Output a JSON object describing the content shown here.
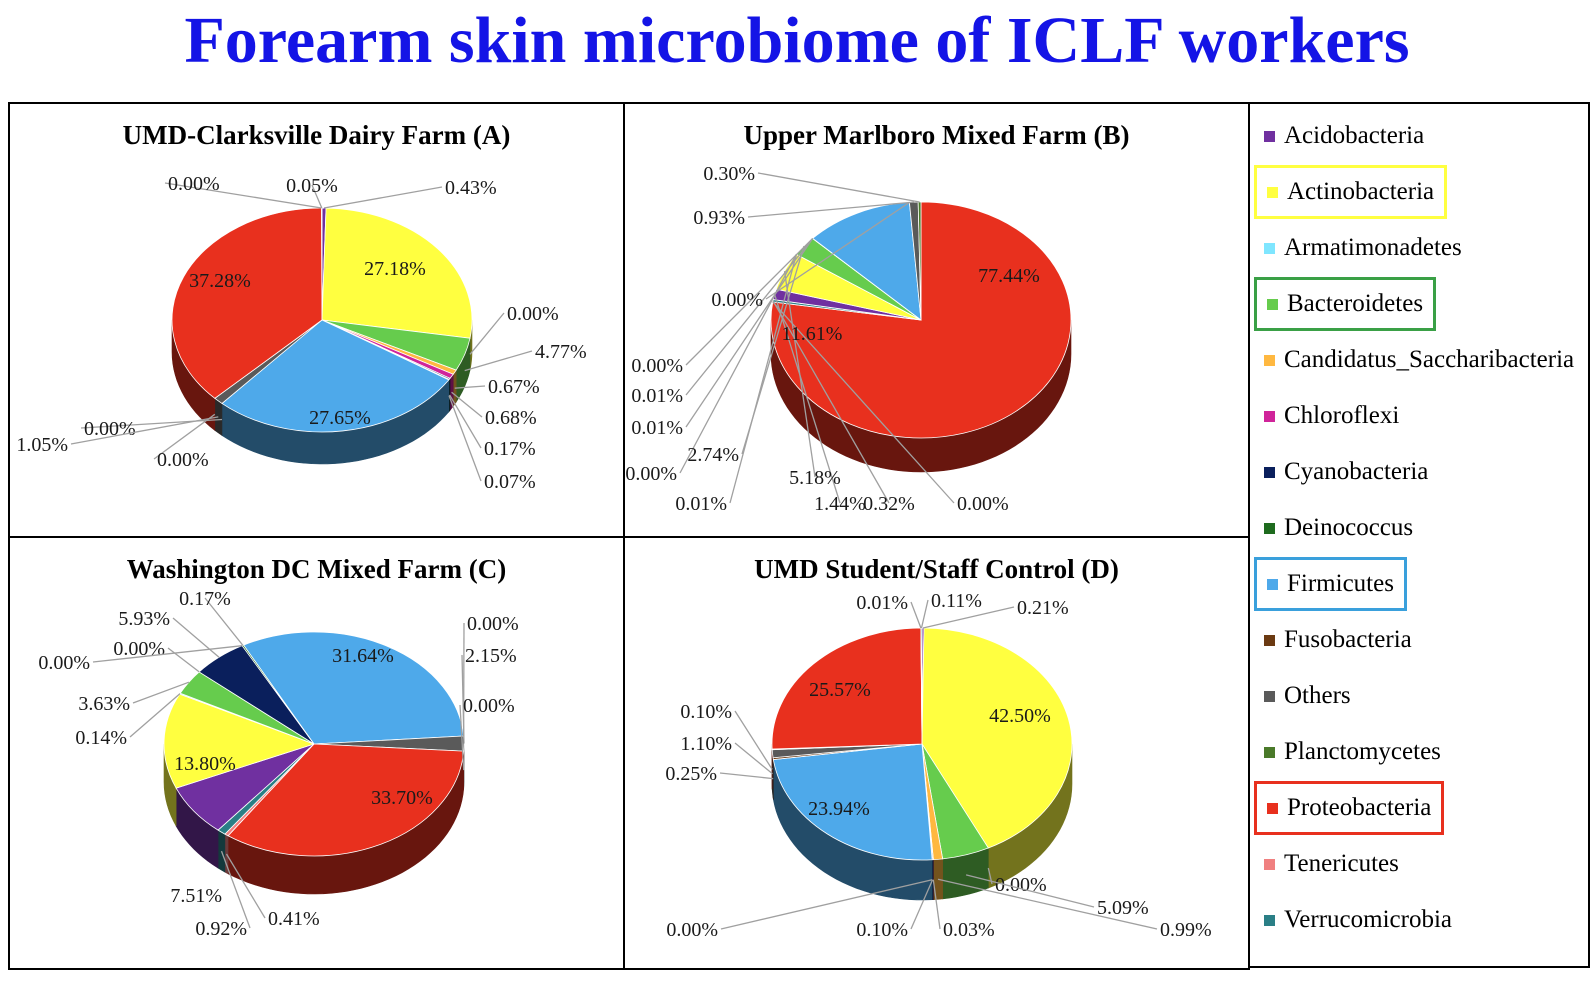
{
  "title": "Forearm skin microbiome of ICLF workers",
  "chart_data": {
    "type": "pie",
    "categories": [
      "Acidobacteria",
      "Actinobacteria",
      "Armatimonadetes",
      "Bacteroidetes",
      "Candidatus_Saccharibacteria",
      "Chloroflexi",
      "Cyanobacteria",
      "Deinococcus",
      "Firmicutes",
      "Fusobacteria",
      "Others",
      "Planctomycetes",
      "Proteobacteria",
      "Tenericutes",
      "Verrucomicrobia"
    ],
    "colors": {
      "Acidobacteria": "#7030a0",
      "Actinobacteria": "#ffff40",
      "Armatimonadetes": "#7fe6ff",
      "Bacteroidetes": "#66cc4d",
      "Candidatus_Saccharibacteria": "#ffb840",
      "Chloroflexi": "#d0249a",
      "Cyanobacteria": "#0a1f5c",
      "Deinococcus": "#1e6b1e",
      "Firmicutes": "#4ea9ea",
      "Fusobacteria": "#6b3a12",
      "Others": "#5a5a5a",
      "Planctomycetes": "#4a7a2a",
      "Proteobacteria": "#e8301e",
      "Tenericutes": "#f08080",
      "Verrucomicrobia": "#2a7f86"
    },
    "highlighted": {
      "Actinobacteria": "#ffff40",
      "Bacteroidetes": "#3aa046",
      "Firmicutes": "#3aa0dc",
      "Proteobacteria": "#e8301e"
    },
    "legend": "right",
    "charts": [
      {
        "title": "UMD-Clarksville Dairy Farm (A)",
        "startAngle": 0,
        "slices": [
          {
            "category": "Acidobacteria",
            "value": 0.43,
            "label": "0.43%"
          },
          {
            "category": "Actinobacteria",
            "value": 27.18,
            "label": "27.18%"
          },
          {
            "category": "Armatimonadetes",
            "value": 0.0,
            "label": "0.00%"
          },
          {
            "category": "Bacteroidetes",
            "value": 4.77,
            "label": "4.77%"
          },
          {
            "category": "Candidatus_Saccharibacteria",
            "value": 0.67,
            "label": "0.67%"
          },
          {
            "category": "Chloroflexi",
            "value": 0.68,
            "label": "0.68%"
          },
          {
            "category": "Cyanobacteria",
            "value": 0.17,
            "label": "0.17%"
          },
          {
            "category": "Deinococcus",
            "value": 0.07,
            "label": "0.07%"
          },
          {
            "category": "Firmicutes",
            "value": 27.65,
            "label": "27.65%"
          },
          {
            "category": "Fusobacteria",
            "value": 0.0,
            "label": "0.00%"
          },
          {
            "category": "Others",
            "value": 1.05,
            "label": "1.05%"
          },
          {
            "category": "Planctomycetes",
            "value": 0.0,
            "label": "0.00%"
          },
          {
            "category": "Proteobacteria",
            "value": 37.28,
            "label": "37.28%"
          },
          {
            "category": "Tenericutes",
            "value": 0.0,
            "label": "0.00%"
          },
          {
            "category": "Verrucomicrobia",
            "value": 0.05,
            "label": "0.05%"
          }
        ]
      },
      {
        "title": "Upper Marlboro Mixed Farm (B)",
        "startAngle": 0,
        "slices": [
          {
            "category": "Proteobacteria",
            "value": 77.44,
            "label": "77.44%"
          },
          {
            "category": "Tenericutes",
            "value": 0.0,
            "label": "0.00%"
          },
          {
            "category": "Verrucomicrobia",
            "value": 0.32,
            "label": "0.32%"
          },
          {
            "category": "Acidobacteria",
            "value": 1.44,
            "label": "1.44%"
          },
          {
            "category": "Actinobacteria",
            "value": 5.18,
            "label": "5.18%"
          },
          {
            "category": "Armatimonadetes",
            "value": 0.01,
            "label": "0.01%"
          },
          {
            "category": "Candidatus_Saccharibacteria",
            "value": 0.0,
            "label": "0.00%"
          },
          {
            "category": "Bacteroidetes",
            "value": 2.74,
            "label": "2.74%"
          },
          {
            "category": "Chloroflexi",
            "value": 0.01,
            "label": "0.01%"
          },
          {
            "category": "Cyanobacteria",
            "value": 0.01,
            "label": "0.01%"
          },
          {
            "category": "Deinococcus",
            "value": 0.0,
            "label": "0.00%"
          },
          {
            "category": "Firmicutes",
            "value": 11.61,
            "label": "11.61%"
          },
          {
            "category": "Fusobacteria",
            "value": 0.0,
            "label": "0.00%"
          },
          {
            "category": "Others",
            "value": 0.93,
            "label": "0.93%"
          },
          {
            "category": "Planctomycetes",
            "value": 0.3,
            "label": "0.30%"
          }
        ]
      },
      {
        "title": "Washington DC Mixed Farm (C)",
        "startAngle": -28,
        "slices": [
          {
            "category": "Firmicutes",
            "value": 31.64,
            "label": "31.64%"
          },
          {
            "category": "Fusobacteria",
            "value": 0.0,
            "label": "0.00%"
          },
          {
            "category": "Others",
            "value": 2.15,
            "label": "2.15%"
          },
          {
            "category": "Planctomycetes",
            "value": 0.0,
            "label": "0.00%"
          },
          {
            "category": "Proteobacteria",
            "value": 33.7,
            "label": "33.70%"
          },
          {
            "category": "Tenericutes",
            "value": 0.41,
            "label": "0.41%"
          },
          {
            "category": "Verrucomicrobia",
            "value": 0.92,
            "label": "0.92%"
          },
          {
            "category": "Acidobacteria",
            "value": 7.51,
            "label": "7.51%"
          },
          {
            "category": "Actinobacteria",
            "value": 13.8,
            "label": "13.80%"
          },
          {
            "category": "Armatimonadetes",
            "value": 0.14,
            "label": "0.14%"
          },
          {
            "category": "Bacteroidetes",
            "value": 3.63,
            "label": "3.63%"
          },
          {
            "category": "Candidatus_Saccharibacteria",
            "value": 0.0,
            "label": "0.00%"
          },
          {
            "category": "Cyanobacteria",
            "value": 5.93,
            "label": "5.93%"
          },
          {
            "category": "Chloroflexi",
            "value": 0.0,
            "label": "0.00%"
          },
          {
            "category": "Deinococcus",
            "value": 0.17,
            "label": "0.17%"
          }
        ]
      },
      {
        "title": "UMD Student/Staff Control (D)",
        "startAngle": 0,
        "slices": [
          {
            "category": "Acidobacteria",
            "value": 0.21,
            "label": "0.21%"
          },
          {
            "category": "Actinobacteria",
            "value": 42.5,
            "label": "42.50%"
          },
          {
            "category": "Armatimonadetes",
            "value": 0.0,
            "label": "0.00%"
          },
          {
            "category": "Bacteroidetes",
            "value": 5.09,
            "label": "5.09%"
          },
          {
            "category": "Candidatus_Saccharibacteria",
            "value": 0.99,
            "label": "0.99%"
          },
          {
            "category": "Chloroflexi",
            "value": 0.03,
            "label": "0.03%"
          },
          {
            "category": "Cyanobacteria",
            "value": 0.1,
            "label": "0.10%"
          },
          {
            "category": "Deinococcus",
            "value": 0.0,
            "label": "0.00%"
          },
          {
            "category": "Firmicutes",
            "value": 23.94,
            "label": "23.94%"
          },
          {
            "category": "Fusobacteria",
            "value": 0.25,
            "label": "0.25%"
          },
          {
            "category": "Others",
            "value": 1.1,
            "label": "1.10%"
          },
          {
            "category": "Planctomycetes",
            "value": 0.1,
            "label": "0.10%"
          },
          {
            "category": "Proteobacteria",
            "value": 25.57,
            "label": "25.57%"
          },
          {
            "category": "Tenericutes",
            "value": 0.01,
            "label": "0.01%"
          },
          {
            "category": "Verrucomicrobia",
            "value": 0.11,
            "label": "0.11%"
          }
        ]
      }
    ]
  }
}
